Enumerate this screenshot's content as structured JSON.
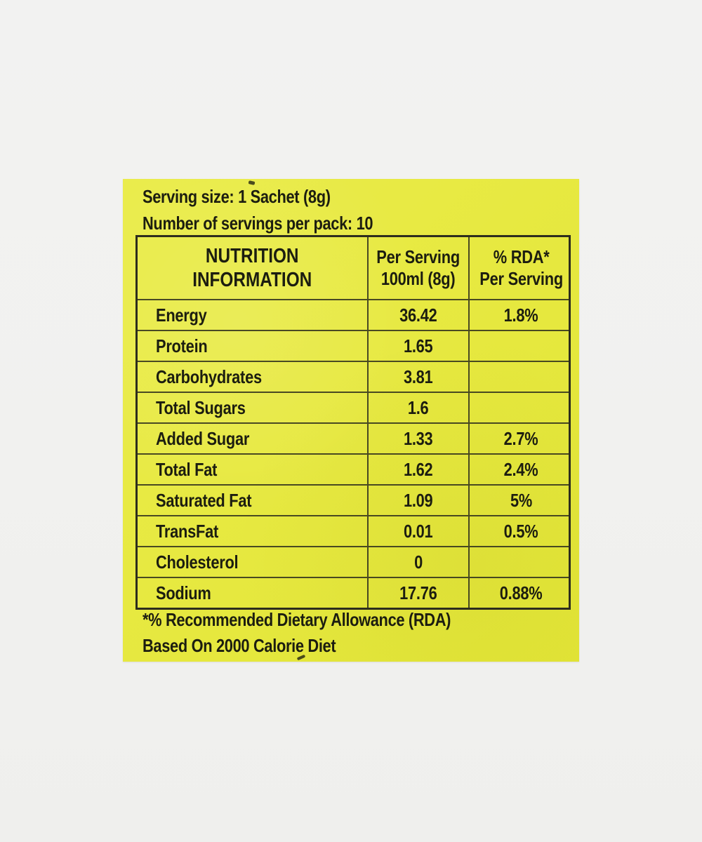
{
  "label": {
    "serving_size_line": "Serving size: 1 Sachet (8g)",
    "servings_per_pack_line": "Number of servings per pack: 10",
    "footnote_line1": "*% Recommended Dietary Allowance (RDA)",
    "footnote_line2": "Based On 2000 Calorie Diet"
  },
  "colors": {
    "label_background": "#e7e941",
    "page_background": "#f1f1ef",
    "ink": "#1c1d10"
  },
  "table": {
    "header": {
      "col1": "NUTRITION\nINFORMATION",
      "col2": "Per Serving\n100ml (8g)",
      "col3": "% RDA*\nPer Serving"
    },
    "rows": [
      {
        "label": "Energy",
        "per_serving": "36.42",
        "rda": "1.8%"
      },
      {
        "label": "Protein",
        "per_serving": "1.65",
        "rda": ""
      },
      {
        "label": "Carbohydrates",
        "per_serving": "3.81",
        "rda": ""
      },
      {
        "label": "Total Sugars",
        "per_serving": "1.6",
        "rda": ""
      },
      {
        "label": "Added Sugar",
        "per_serving": "1.33",
        "rda": "2.7%"
      },
      {
        "label": "Total Fat",
        "per_serving": "1.62",
        "rda": "2.4%"
      },
      {
        "label": "Saturated Fat",
        "per_serving": "1.09",
        "rda": "5%"
      },
      {
        "label": "TransFat",
        "per_serving": "0.01",
        "rda": "0.5%"
      },
      {
        "label": "Cholesterol",
        "per_serving": "0",
        "rda": ""
      },
      {
        "label": "Sodium",
        "per_serving": "17.76",
        "rda": "0.88%"
      }
    ]
  }
}
